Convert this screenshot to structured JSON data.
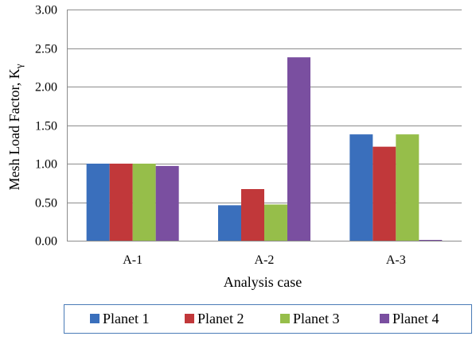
{
  "chart_data": {
    "type": "bar",
    "title": "",
    "xlabel": "Analysis  case",
    "ylabel": "Mesh Load Factor, K",
    "ylabel_subscript": "γ",
    "categories": [
      "A-1",
      "A-2",
      "A-3"
    ],
    "ylim": [
      0,
      3
    ],
    "yticks": [
      "0.00",
      "0.50",
      "1.00",
      "1.50",
      "2.00",
      "2.50",
      "3.00"
    ],
    "grid": "horizontal",
    "legend_position": "bottom",
    "series": [
      {
        "name": "Planet 1",
        "color": "#3A6FBC",
        "values": [
          1.0,
          0.46,
          1.38
        ]
      },
      {
        "name": "Planet 2",
        "color": "#C1383A",
        "values": [
          1.0,
          0.67,
          1.22
        ]
      },
      {
        "name": "Planet 3",
        "color": "#96BE4A",
        "values": [
          1.0,
          0.47,
          1.38
        ]
      },
      {
        "name": "Planet 4",
        "color": "#7A4FA0",
        "values": [
          0.97,
          2.38,
          0.01
        ]
      }
    ]
  }
}
